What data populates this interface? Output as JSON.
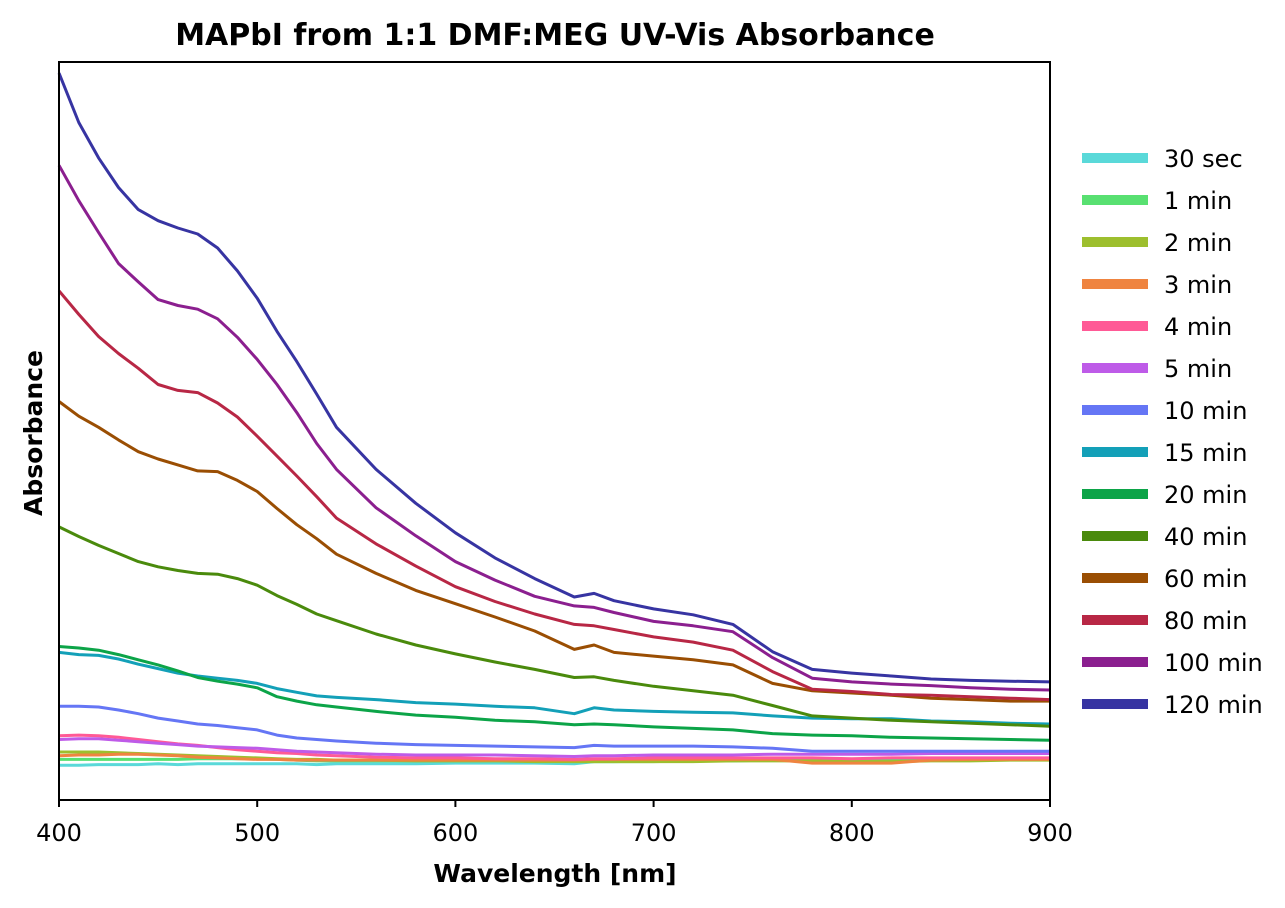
{
  "chart_data": {
    "type": "line",
    "title": "MAPbI from 1:1 DMF:MEG UV-Vis Absorbance",
    "xlabel": "Wavelength [nm]",
    "ylabel": "Absorbance",
    "xlim": [
      400,
      900
    ],
    "ylim": [
      0,
      1
    ],
    "y_tick_labels_shown": false,
    "xticks": [
      {
        "value": 400,
        "label": "400"
      },
      {
        "value": 500,
        "label": "500"
      },
      {
        "value": 600,
        "label": "600"
      },
      {
        "value": 700,
        "label": "700"
      },
      {
        "value": 800,
        "label": "800"
      },
      {
        "value": 900,
        "label": "900"
      }
    ],
    "grid": false,
    "legend_position": "right, outside plot",
    "x": [
      400,
      410,
      420,
      430,
      440,
      450,
      460,
      470,
      480,
      490,
      500,
      510,
      520,
      530,
      540,
      560,
      580,
      600,
      620,
      640,
      660,
      670,
      680,
      700,
      720,
      740,
      760,
      780,
      800,
      820,
      840,
      860,
      880,
      900
    ],
    "series": [
      {
        "name": "30 sec",
        "color": "#5ad9d9",
        "values": [
          0.047,
          0.047,
          0.048,
          0.048,
          0.048,
          0.049,
          0.048,
          0.049,
          0.049,
          0.049,
          0.049,
          0.049,
          0.049,
          0.048,
          0.049,
          0.049,
          0.049,
          0.05,
          0.05,
          0.05,
          0.049,
          0.052,
          0.052,
          0.053,
          0.053,
          0.053,
          0.054,
          0.054,
          0.055,
          0.055,
          0.056,
          0.056,
          0.056,
          0.057
        ]
      },
      {
        "name": "1 min",
        "color": "#58e071",
        "values": [
          0.055,
          0.055,
          0.055,
          0.055,
          0.055,
          0.055,
          0.055,
          0.056,
          0.056,
          0.056,
          0.056,
          0.055,
          0.054,
          0.053,
          0.053,
          0.053,
          0.053,
          0.053,
          0.053,
          0.053,
          0.052,
          0.052,
          0.052,
          0.052,
          0.053,
          0.053,
          0.054,
          0.054,
          0.055,
          0.055,
          0.055,
          0.056,
          0.056,
          0.056
        ]
      },
      {
        "name": "2 min",
        "color": "#9dbf2e",
        "values": [
          0.065,
          0.065,
          0.065,
          0.064,
          0.063,
          0.062,
          0.061,
          0.06,
          0.059,
          0.058,
          0.057,
          0.056,
          0.055,
          0.055,
          0.054,
          0.054,
          0.053,
          0.053,
          0.053,
          0.052,
          0.052,
          0.052,
          0.052,
          0.052,
          0.052,
          0.053,
          0.053,
          0.053,
          0.052,
          0.052,
          0.053,
          0.053,
          0.054,
          0.054
        ]
      },
      {
        "name": "3 min",
        "color": "#ef8440",
        "values": [
          0.06,
          0.061,
          0.061,
          0.062,
          0.062,
          0.061,
          0.06,
          0.058,
          0.057,
          0.056,
          0.055,
          0.055,
          0.054,
          0.054,
          0.054,
          0.054,
          0.054,
          0.054,
          0.054,
          0.054,
          0.054,
          0.055,
          0.055,
          0.055,
          0.055,
          0.055,
          0.055,
          0.05,
          0.05,
          0.05,
          0.054,
          0.055,
          0.055,
          0.055
        ]
      },
      {
        "name": "4 min",
        "color": "#ff5a96",
        "values": [
          0.087,
          0.088,
          0.087,
          0.085,
          0.082,
          0.079,
          0.076,
          0.074,
          0.071,
          0.068,
          0.066,
          0.064,
          0.063,
          0.061,
          0.06,
          0.058,
          0.057,
          0.057,
          0.056,
          0.056,
          0.055,
          0.056,
          0.056,
          0.057,
          0.057,
          0.057,
          0.057,
          0.057,
          0.056,
          0.057,
          0.057,
          0.057,
          0.057,
          0.057
        ]
      },
      {
        "name": "5 min",
        "color": "#be5be8",
        "values": [
          0.082,
          0.083,
          0.083,
          0.081,
          0.079,
          0.077,
          0.075,
          0.073,
          0.072,
          0.071,
          0.07,
          0.068,
          0.066,
          0.065,
          0.064,
          0.062,
          0.061,
          0.061,
          0.061,
          0.06,
          0.059,
          0.06,
          0.06,
          0.061,
          0.061,
          0.061,
          0.062,
          0.062,
          0.062,
          0.062,
          0.063,
          0.063,
          0.063,
          0.063
        ]
      },
      {
        "name": "10 min",
        "color": "#6576f5",
        "values": [
          0.127,
          0.127,
          0.126,
          0.122,
          0.117,
          0.111,
          0.107,
          0.103,
          0.101,
          0.098,
          0.095,
          0.088,
          0.084,
          0.082,
          0.08,
          0.077,
          0.075,
          0.074,
          0.073,
          0.072,
          0.071,
          0.074,
          0.073,
          0.073,
          0.073,
          0.072,
          0.07,
          0.066,
          0.066,
          0.066,
          0.066,
          0.066,
          0.066,
          0.066
        ]
      },
      {
        "name": "15 min",
        "color": "#13a0b8",
        "values": [
          0.2,
          0.197,
          0.196,
          0.191,
          0.184,
          0.178,
          0.172,
          0.168,
          0.165,
          0.162,
          0.158,
          0.151,
          0.146,
          0.141,
          0.139,
          0.136,
          0.132,
          0.13,
          0.127,
          0.125,
          0.117,
          0.125,
          0.122,
          0.12,
          0.119,
          0.118,
          0.114,
          0.111,
          0.11,
          0.11,
          0.107,
          0.106,
          0.104,
          0.103
        ]
      },
      {
        "name": "20 min",
        "color": "#0ca448",
        "values": [
          0.208,
          0.206,
          0.203,
          0.197,
          0.19,
          0.183,
          0.175,
          0.166,
          0.161,
          0.157,
          0.152,
          0.14,
          0.134,
          0.129,
          0.126,
          0.12,
          0.115,
          0.112,
          0.108,
          0.106,
          0.102,
          0.103,
          0.102,
          0.099,
          0.097,
          0.095,
          0.09,
          0.088,
          0.087,
          0.085,
          0.084,
          0.083,
          0.082,
          0.081
        ]
      },
      {
        "name": "40 min",
        "color": "#4a8a0c",
        "values": [
          0.37,
          0.357,
          0.345,
          0.334,
          0.323,
          0.316,
          0.311,
          0.307,
          0.306,
          0.3,
          0.291,
          0.277,
          0.265,
          0.252,
          0.243,
          0.225,
          0.21,
          0.198,
          0.187,
          0.177,
          0.166,
          0.167,
          0.162,
          0.154,
          0.148,
          0.142,
          0.128,
          0.114,
          0.111,
          0.108,
          0.106,
          0.104,
          0.102,
          0.1
        ]
      },
      {
        "name": "60 min",
        "color": "#9a4e03",
        "values": [
          0.54,
          0.52,
          0.505,
          0.488,
          0.472,
          0.462,
          0.454,
          0.446,
          0.445,
          0.433,
          0.418,
          0.395,
          0.373,
          0.354,
          0.333,
          0.307,
          0.284,
          0.266,
          0.248,
          0.229,
          0.204,
          0.21,
          0.2,
          0.195,
          0.19,
          0.183,
          0.158,
          0.148,
          0.145,
          0.142,
          0.138,
          0.136,
          0.134,
          0.134
        ]
      },
      {
        "name": "80 min",
        "color": "#b82745",
        "values": [
          0.69,
          0.658,
          0.628,
          0.605,
          0.585,
          0.563,
          0.555,
          0.552,
          0.538,
          0.519,
          0.493,
          0.466,
          0.439,
          0.411,
          0.382,
          0.347,
          0.317,
          0.289,
          0.269,
          0.252,
          0.238,
          0.236,
          0.231,
          0.221,
          0.214,
          0.203,
          0.174,
          0.15,
          0.147,
          0.143,
          0.142,
          0.14,
          0.138,
          0.136
        ]
      },
      {
        "name": "100 min",
        "color": "#8b1f8f",
        "values": [
          0.86,
          0.812,
          0.769,
          0.727,
          0.702,
          0.678,
          0.67,
          0.665,
          0.652,
          0.627,
          0.597,
          0.563,
          0.525,
          0.483,
          0.448,
          0.396,
          0.358,
          0.323,
          0.298,
          0.276,
          0.263,
          0.261,
          0.254,
          0.242,
          0.236,
          0.228,
          0.193,
          0.165,
          0.16,
          0.157,
          0.155,
          0.152,
          0.15,
          0.149
        ]
      },
      {
        "name": "120 min",
        "color": "#3734a2",
        "values": [
          0.985,
          0.918,
          0.87,
          0.83,
          0.8,
          0.785,
          0.775,
          0.767,
          0.748,
          0.717,
          0.68,
          0.635,
          0.594,
          0.55,
          0.505,
          0.448,
          0.402,
          0.362,
          0.328,
          0.3,
          0.275,
          0.28,
          0.27,
          0.259,
          0.251,
          0.238,
          0.201,
          0.177,
          0.172,
          0.168,
          0.164,
          0.162,
          0.161,
          0.16
        ]
      }
    ]
  }
}
